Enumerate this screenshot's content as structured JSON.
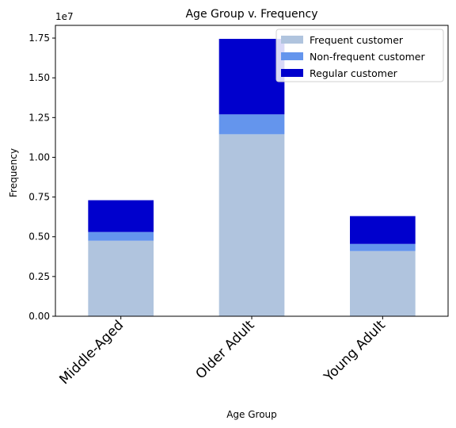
{
  "chart_data": {
    "type": "bar",
    "stacked": true,
    "title": "Age Group v. Frequency",
    "xlabel": "Age Group",
    "ylabel": "Frequency",
    "y_offset_label": "1e7",
    "ylim": [
      0,
      18300000
    ],
    "yticks": [
      "0.00",
      "0.25",
      "0.50",
      "0.75",
      "1.00",
      "1.25",
      "1.50",
      "1.75"
    ],
    "categories": [
      "Middle-Aged",
      "Older Adult",
      "Young Adult"
    ],
    "series": [
      {
        "name": "Frequent customer",
        "color": "#B0C4DE",
        "values": [
          4750000,
          11450000,
          4100000
        ]
      },
      {
        "name": "Non-frequent customer",
        "color": "#6495ED",
        "values": [
          550000,
          1250000,
          450000
        ]
      },
      {
        "name": "Regular customer",
        "color": "#0000CD",
        "values": [
          2000000,
          4750000,
          1750000
        ]
      }
    ],
    "legend_position": "top-right",
    "grid": false
  }
}
